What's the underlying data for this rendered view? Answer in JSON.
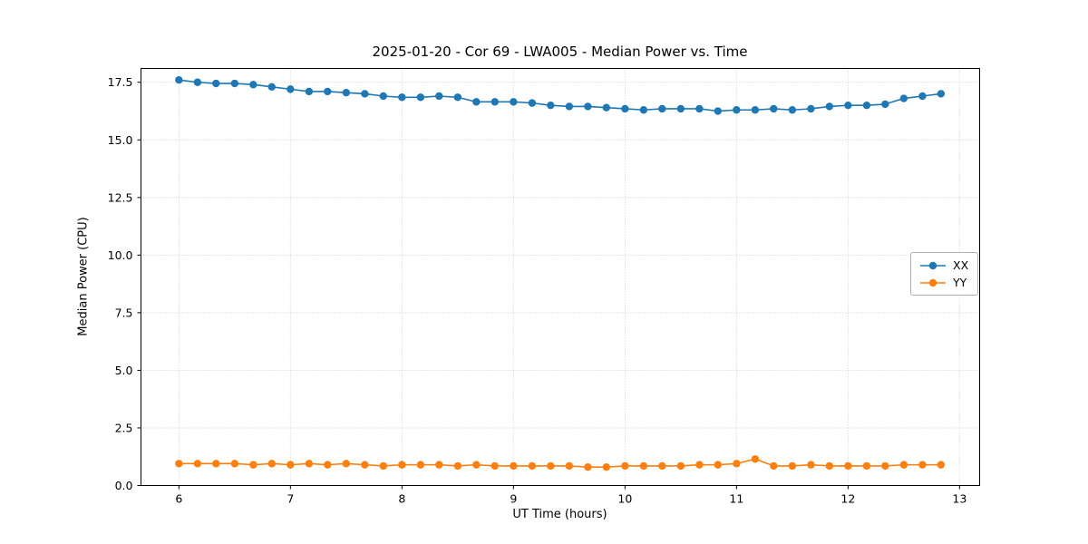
{
  "chart_data": {
    "type": "line",
    "title": "2025-01-20 - Cor 69 - LWA005 - Median Power vs. Time",
    "xlabel": "UT Time (hours)",
    "ylabel": "Median Power (CPU)",
    "xlim": [
      5.66,
      13.18
    ],
    "ylim": [
      0,
      18.1
    ],
    "xticks": [
      6,
      7,
      8,
      9,
      10,
      11,
      12,
      13
    ],
    "xtick_labels": [
      "6",
      "7",
      "8",
      "9",
      "10",
      "11",
      "12",
      "13"
    ],
    "yticks": [
      0.0,
      2.5,
      5.0,
      7.5,
      10.0,
      12.5,
      15.0,
      17.5
    ],
    "ytick_labels": [
      "0.0",
      "2.5",
      "5.0",
      "7.5",
      "10.0",
      "12.5",
      "15.0",
      "17.5"
    ],
    "grid": true,
    "grid_color": "#cccccc",
    "legend_position": "center right",
    "marker": "circle",
    "x": [
      6.0,
      6.167,
      6.333,
      6.5,
      6.667,
      6.833,
      7.0,
      7.167,
      7.333,
      7.5,
      7.667,
      7.833,
      8.0,
      8.167,
      8.333,
      8.5,
      8.667,
      8.833,
      9.0,
      9.167,
      9.333,
      9.5,
      9.667,
      9.833,
      10.0,
      10.167,
      10.333,
      10.5,
      10.667,
      10.833,
      11.0,
      11.167,
      11.333,
      11.5,
      11.667,
      11.833,
      12.0,
      12.167,
      12.333,
      12.5,
      12.667,
      12.833
    ],
    "series": [
      {
        "name": "XX",
        "color": "#1f77b4",
        "values": [
          17.6,
          17.5,
          17.45,
          17.45,
          17.4,
          17.3,
          17.2,
          17.1,
          17.1,
          17.05,
          17.0,
          16.9,
          16.85,
          16.85,
          16.9,
          16.85,
          16.65,
          16.65,
          16.65,
          16.6,
          16.5,
          16.45,
          16.45,
          16.4,
          16.35,
          16.3,
          16.35,
          16.35,
          16.35,
          16.25,
          16.3,
          16.3,
          16.35,
          16.3,
          16.35,
          16.45,
          16.5,
          16.5,
          16.55,
          16.8,
          16.9,
          17.0
        ]
      },
      {
        "name": "YY",
        "color": "#ff7f0e",
        "values": [
          0.95,
          0.95,
          0.95,
          0.95,
          0.9,
          0.95,
          0.9,
          0.95,
          0.9,
          0.95,
          0.9,
          0.85,
          0.9,
          0.9,
          0.9,
          0.85,
          0.9,
          0.85,
          0.85,
          0.85,
          0.85,
          0.85,
          0.8,
          0.8,
          0.85,
          0.85,
          0.85,
          0.85,
          0.9,
          0.9,
          0.95,
          1.15,
          0.85,
          0.85,
          0.9,
          0.85,
          0.85,
          0.85,
          0.85,
          0.9,
          0.9,
          0.9
        ]
      }
    ]
  }
}
